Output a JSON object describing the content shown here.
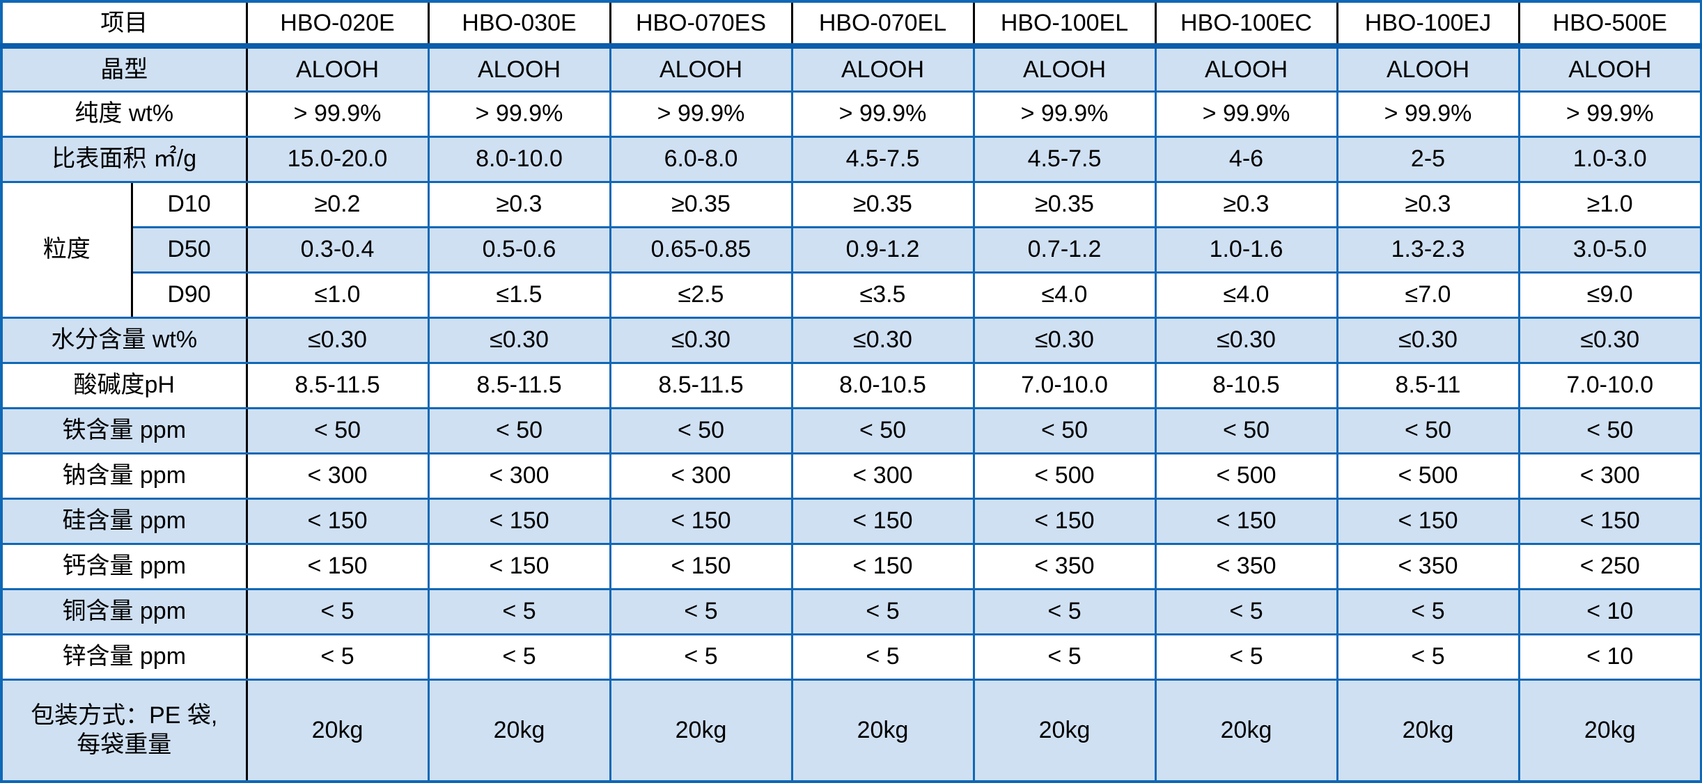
{
  "table": {
    "corner_label": "项目",
    "columns": [
      "HBO-020E",
      "HBO-030E",
      "HBO-070ES",
      "HBO-070EL",
      "HBO-100EL",
      "HBO-100EC",
      "HBO-100EJ",
      "HBO-500E"
    ],
    "group_label": "粒度",
    "rows": [
      {
        "label": "晶型",
        "values": [
          "ALOOH",
          "ALOOH",
          "ALOOH",
          "ALOOH",
          "ALOOH",
          "ALOOH",
          "ALOOH",
          "ALOOH"
        ]
      },
      {
        "label": "纯度 wt%",
        "values": [
          "> 99.9%",
          "> 99.9%",
          "> 99.9%",
          "> 99.9%",
          "> 99.9%",
          "> 99.9%",
          "> 99.9%",
          "> 99.9%"
        ]
      },
      {
        "label": "比表面积 ㎡/g",
        "values": [
          "15.0-20.0",
          "8.0-10.0",
          "6.0-8.0",
          "4.5-7.5",
          "4.5-7.5",
          "4-6",
          "2-5",
          "1.0-3.0"
        ]
      },
      {
        "group": true,
        "label": "D10",
        "values": [
          "≥0.2",
          "≥0.3",
          "≥0.35",
          "≥0.35",
          "≥0.35",
          "≥0.3",
          "≥0.3",
          "≥1.0"
        ]
      },
      {
        "group": true,
        "label": "D50",
        "values": [
          "0.3-0.4",
          "0.5-0.6",
          "0.65-0.85",
          "0.9-1.2",
          "0.7-1.2",
          "1.0-1.6",
          "1.3-2.3",
          "3.0-5.0"
        ]
      },
      {
        "group": true,
        "label": "D90",
        "values": [
          "≤1.0",
          "≤1.5",
          "≤2.5",
          "≤3.5",
          "≤4.0",
          "≤4.0",
          "≤7.0",
          "≤9.0"
        ]
      },
      {
        "label": "水分含量 wt%",
        "values": [
          "≤0.30",
          "≤0.30",
          "≤0.30",
          "≤0.30",
          "≤0.30",
          "≤0.30",
          "≤0.30",
          "≤0.30"
        ]
      },
      {
        "label": "酸碱度pH",
        "values": [
          "8.5-11.5",
          "8.5-11.5",
          "8.5-11.5",
          "8.0-10.5",
          "7.0-10.0",
          "8-10.5",
          "8.5-11",
          "7.0-10.0"
        ]
      },
      {
        "label": "铁含量 ppm",
        "values": [
          "< 50",
          "< 50",
          "< 50",
          "< 50",
          "< 50",
          "< 50",
          "< 50",
          "< 50"
        ]
      },
      {
        "label": "钠含量 ppm",
        "values": [
          "< 300",
          "< 300",
          "< 300",
          "< 300",
          "< 500",
          "< 500",
          "< 500",
          "< 300"
        ]
      },
      {
        "label": "硅含量 ppm",
        "values": [
          "< 150",
          "< 150",
          "< 150",
          "< 150",
          "< 150",
          "< 150",
          "< 150",
          "< 150"
        ]
      },
      {
        "label": "钙含量 ppm",
        "values": [
          "< 150",
          "< 150",
          "< 150",
          "< 150",
          "< 350",
          "< 350",
          "< 350",
          "< 250"
        ]
      },
      {
        "label": "铜含量 ppm",
        "values": [
          "< 5",
          "< 5",
          "< 5",
          "< 5",
          "< 5",
          "< 5",
          "< 5",
          "< 10"
        ]
      },
      {
        "label": "锌含量 ppm",
        "values": [
          "< 5",
          "< 5",
          "< 5",
          "< 5",
          "< 5",
          "< 5",
          "< 5",
          "< 10"
        ]
      },
      {
        "label": "包装方式：PE 袋,\n每袋重量",
        "values": [
          "20kg",
          "20kg",
          "20kg",
          "20kg",
          "20kg",
          "20kg",
          "20kg",
          "20kg"
        ]
      }
    ],
    "colors": {
      "row_shade": "#cfe0f2",
      "grid_blue": "#0f68b6",
      "header_rule": "#0a5dab",
      "header_divider": "#000000"
    }
  }
}
